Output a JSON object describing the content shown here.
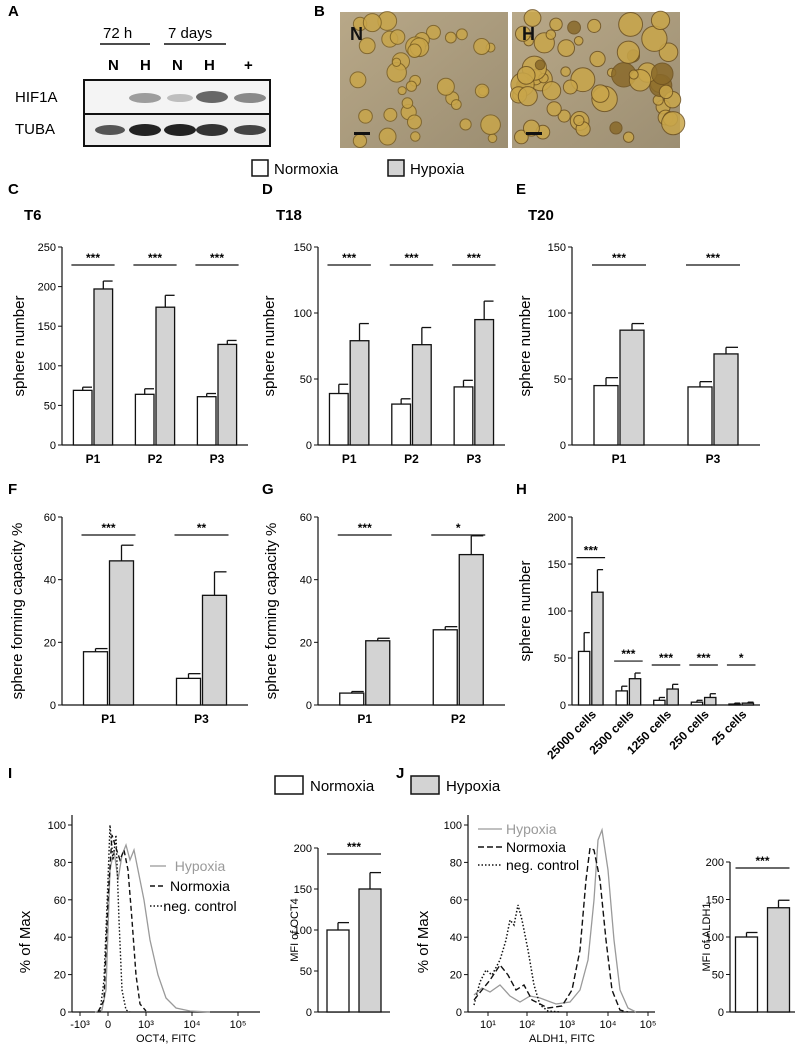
{
  "legend": {
    "normoxia": "Normoxia",
    "hypoxia": "Hypoxia"
  },
  "colors": {
    "normoxia_fill": "#ffffff",
    "hypoxia_fill": "#d3d3d3",
    "stroke": "#111111",
    "hypoxia_trace": "#9a9a9a"
  },
  "panel_A": {
    "letter": "A",
    "groups": [
      "72 h",
      "7 days"
    ],
    "lanes": [
      "N",
      "H",
      "N",
      "H",
      "+"
    ],
    "rows": [
      "HIF1A",
      "TUBA"
    ]
  },
  "panel_B": {
    "letter": "B",
    "images": [
      "N",
      "H"
    ]
  },
  "chart_data": [
    {
      "id": "C",
      "type": "bar",
      "title": "T6",
      "ylabel": "sphere number",
      "categories": [
        "P1",
        "P2",
        "P3"
      ],
      "ylim": [
        0,
        250
      ],
      "yticks": [
        "0",
        "50",
        "100",
        "150",
        "200",
        "250"
      ],
      "ytick_values": [
        0,
        50,
        100,
        150,
        200,
        250
      ],
      "series": [
        {
          "name": "Normoxia",
          "values": [
            69,
            64,
            61
          ],
          "errors": [
            4,
            7,
            4
          ]
        },
        {
          "name": "Hypoxia",
          "values": [
            197,
            174,
            127
          ],
          "errors": [
            10,
            15,
            5
          ]
        }
      ],
      "significance": [
        "***",
        "***",
        "***"
      ]
    },
    {
      "id": "D",
      "type": "bar",
      "title": "T18",
      "ylabel": "sphere number",
      "categories": [
        "P1",
        "P2",
        "P3"
      ],
      "ylim": [
        0,
        150
      ],
      "yticks": [
        "0",
        "50",
        "100",
        "150"
      ],
      "ytick_values": [
        0,
        50,
        100,
        150
      ],
      "series": [
        {
          "name": "Normoxia",
          "values": [
            39,
            31,
            44
          ],
          "errors": [
            7,
            4,
            5
          ]
        },
        {
          "name": "Hypoxia",
          "values": [
            79,
            76,
            95
          ],
          "errors": [
            13,
            13,
            14
          ]
        }
      ],
      "significance": [
        "***",
        "***",
        "***"
      ]
    },
    {
      "id": "E",
      "type": "bar",
      "title": "T20",
      "ylabel": "sphere number",
      "categories": [
        "P1",
        "P3"
      ],
      "ylim": [
        0,
        150
      ],
      "yticks": [
        "0",
        "50",
        "100",
        "150"
      ],
      "ytick_values": [
        0,
        50,
        100,
        150
      ],
      "series": [
        {
          "name": "Normoxia",
          "values": [
            45,
            44
          ],
          "errors": [
            6,
            4
          ]
        },
        {
          "name": "Hypoxia",
          "values": [
            87,
            69
          ],
          "errors": [
            5,
            5
          ]
        }
      ],
      "significance": [
        "***",
        "***"
      ]
    },
    {
      "id": "F",
      "type": "bar",
      "title": "",
      "ylabel": "sphere forming capacity %",
      "categories": [
        "P1",
        "P3"
      ],
      "ylim": [
        0,
        60
      ],
      "yticks": [
        "0",
        "20",
        "40",
        "60"
      ],
      "ytick_values": [
        0,
        20,
        40,
        60
      ],
      "series": [
        {
          "name": "Normoxia",
          "values": [
            17,
            8.5
          ],
          "errors": [
            1,
            1.5
          ]
        },
        {
          "name": "Hypoxia",
          "values": [
            46,
            35
          ],
          "errors": [
            5,
            7.5
          ]
        }
      ],
      "significance": [
        "***",
        "**"
      ]
    },
    {
      "id": "G",
      "type": "bar",
      "title": "",
      "ylabel": "sphere forming capacity %",
      "categories": [
        "P1",
        "P2"
      ],
      "ylim": [
        0,
        60
      ],
      "yticks": [
        "0",
        "20",
        "40",
        "60"
      ],
      "ytick_values": [
        0,
        20,
        40,
        60
      ],
      "series": [
        {
          "name": "Normoxia",
          "values": [
            3.8,
            24
          ],
          "errors": [
            0.5,
            1
          ]
        },
        {
          "name": "Hypoxia",
          "values": [
            20.5,
            48
          ],
          "errors": [
            0.8,
            6
          ]
        }
      ],
      "significance": [
        "***",
        "*"
      ]
    },
    {
      "id": "H",
      "type": "bar",
      "title": "",
      "ylabel": "sphere number",
      "categories": [
        "25000 cells",
        "2500 cells",
        "1250 cells",
        "250 cells",
        "25 cells"
      ],
      "ylim": [
        0,
        200
      ],
      "yticks": [
        "0",
        "50",
        "100",
        "150",
        "200"
      ],
      "ytick_values": [
        0,
        50,
        100,
        150,
        200
      ],
      "series": [
        {
          "name": "Normoxia",
          "values": [
            57,
            15,
            5,
            3,
            1
          ],
          "errors": [
            20,
            5,
            3,
            2,
            1
          ]
        },
        {
          "name": "Hypoxia",
          "values": [
            120,
            28,
            17,
            8,
            2
          ],
          "errors": [
            24,
            6,
            5,
            4,
            1
          ]
        }
      ],
      "significance": [
        "***",
        "***",
        "***",
        "***",
        "*"
      ]
    },
    {
      "id": "I",
      "type": "line",
      "title": "",
      "xlabel": "OCT4, FITC",
      "ylabel": "% of Max",
      "yticks": [
        "0",
        "20",
        "40",
        "60",
        "80",
        "100"
      ],
      "ylim": [
        0,
        100
      ],
      "xticks": [
        "-10³",
        "0",
        "10³",
        "10⁴",
        "10⁵"
      ],
      "series": [
        {
          "name": "Hypoxia",
          "x": [
            "-10³",
            "0",
            "10³"
          ],
          "peak_y": 90
        },
        {
          "name": "Normoxia",
          "peak_y": 93
        },
        {
          "name": "neg. control",
          "peak_y": 96
        }
      ]
    },
    {
      "id": "I_mfi",
      "type": "bar",
      "title": "",
      "ylabel": "MFI of OCT4",
      "categories": [
        "Normoxia",
        "Hypoxia"
      ],
      "ylim": [
        0,
        200
      ],
      "yticks": [
        "0",
        "50",
        "100",
        "150",
        "200"
      ],
      "ytick_values": [
        0,
        50,
        100,
        150,
        200
      ],
      "values": [
        100,
        150
      ],
      "errors": [
        9,
        20
      ],
      "significance": [
        "***"
      ]
    },
    {
      "id": "J",
      "type": "line",
      "title": "",
      "xlabel": "ALDH1, FITC",
      "ylabel": "% of Max",
      "yticks": [
        "0",
        "20",
        "40",
        "60",
        "80",
        "100"
      ],
      "ylim": [
        0,
        100
      ],
      "xticks": [
        "10¹",
        "10²",
        "10³",
        "10⁴",
        "10⁵"
      ],
      "series": [
        {
          "name": "Hypoxia",
          "peak_y": 92
        },
        {
          "name": "Normoxia",
          "peak_y": 88
        },
        {
          "name": "neg. control",
          "peak_y": 52
        }
      ]
    },
    {
      "id": "J_mfi",
      "type": "bar",
      "title": "",
      "ylabel": "MFI of ALDH1",
      "categories": [
        "Normoxia",
        "Hypoxia"
      ],
      "ylim": [
        0,
        200
      ],
      "yticks": [
        "0",
        "50",
        "100",
        "150",
        "200"
      ],
      "ytick_values": [
        0,
        50,
        100,
        150,
        200
      ],
      "values": [
        100,
        139
      ],
      "errors": [
        6,
        10
      ],
      "significance": [
        "***"
      ]
    }
  ],
  "flow_legend": {
    "hypoxia": "Hypoxia",
    "normoxia": "Normoxia",
    "neg": "neg. control"
  }
}
